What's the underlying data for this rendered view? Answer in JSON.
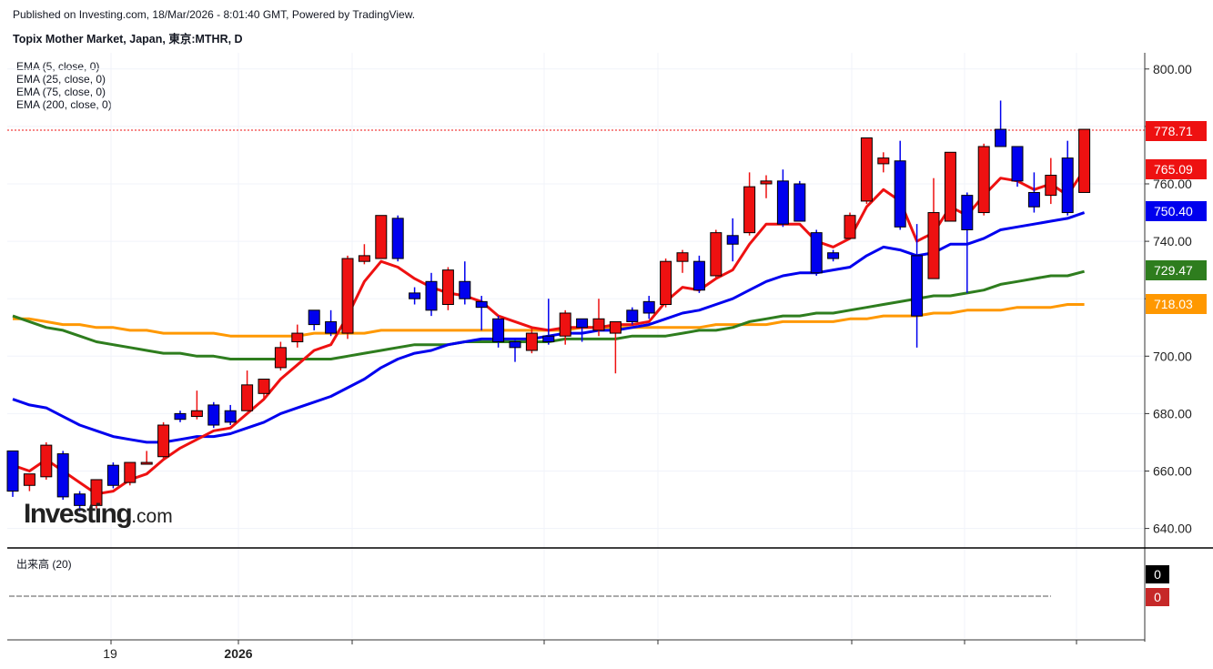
{
  "header": {
    "published": "Published on Investing.com, 18/Mar/2026 - 8:01:40 GMT, Powered by TradingView.",
    "title": "Topix Mother Market, Japan, 東京:MTHR, D"
  },
  "indicators": [
    {
      "label": "EMA (5, close, 0)",
      "color": "#ee1111"
    },
    {
      "label": "EMA (25, close, 0)",
      "color": "#0000ee"
    },
    {
      "label": "EMA (75, close, 0)",
      "color": "#2e7d1e"
    },
    {
      "label": "EMA (200, close, 0)",
      "color": "#ff9800"
    }
  ],
  "volume": {
    "label": "出来高 (20)",
    "values": [
      "0",
      "0"
    ],
    "colors": [
      "#000000",
      "#c62828"
    ]
  },
  "logo": {
    "main": "Investing",
    "suffix": ".com"
  },
  "chart_data": {
    "type": "candlestick",
    "y_ticks": [
      "800.00",
      "780.00",
      "760.00",
      "740.00",
      "720.00",
      "700.00",
      "680.00",
      "660.00",
      "640.00"
    ],
    "y_tick_values": [
      800,
      780,
      760,
      740,
      720,
      700,
      680,
      660,
      640
    ],
    "x_ticks": [
      {
        "label": "19",
        "bold": false,
        "index": 5
      },
      {
        "label": "2026",
        "bold": true,
        "index": 11
      }
    ],
    "price_line": 778.71,
    "last_value_labels": [
      {
        "value": 778.71,
        "text": "778.71",
        "color": "#ee1111"
      },
      {
        "value": 765.09,
        "text": "765.09",
        "color": "#ee1111"
      },
      {
        "value": 750.4,
        "text": "750.40",
        "color": "#0000ee"
      },
      {
        "value": 729.47,
        "text": "729.47",
        "color": "#2e7d1e"
      },
      {
        "value": 718.03,
        "text": "718.03",
        "color": "#ff9800"
      }
    ],
    "up_color": "#ee1111",
    "down_color": "#0000ee",
    "candles": [
      {
        "o": 667,
        "h": 667,
        "l": 651,
        "c": 653
      },
      {
        "o": 655,
        "h": 658,
        "l": 653,
        "c": 659
      },
      {
        "o": 658,
        "h": 670,
        "l": 657,
        "c": 669
      },
      {
        "o": 666,
        "h": 667,
        "l": 650,
        "c": 651
      },
      {
        "o": 652,
        "h": 653,
        "l": 646,
        "c": 648
      },
      {
        "o": 648,
        "h": 656,
        "l": 647,
        "c": 657
      },
      {
        "o": 662,
        "h": 663,
        "l": 654,
        "c": 655
      },
      {
        "o": 656,
        "h": 663,
        "l": 655,
        "c": 663
      },
      {
        "o": 663,
        "h": 667,
        "l": 663,
        "c": 663
      },
      {
        "o": 665,
        "h": 677,
        "l": 664,
        "c": 676
      },
      {
        "o": 680,
        "h": 681,
        "l": 677,
        "c": 678
      },
      {
        "o": 679,
        "h": 688,
        "l": 678,
        "c": 681
      },
      {
        "o": 683,
        "h": 684,
        "l": 675,
        "c": 676
      },
      {
        "o": 681,
        "h": 683,
        "l": 676,
        "c": 677
      },
      {
        "o": 681,
        "h": 695,
        "l": 681,
        "c": 690
      },
      {
        "o": 687,
        "h": 692,
        "l": 685,
        "c": 692
      },
      {
        "o": 696,
        "h": 705,
        "l": 695,
        "c": 703
      },
      {
        "o": 705,
        "h": 711,
        "l": 703,
        "c": 708
      },
      {
        "o": 716,
        "h": 716,
        "l": 709,
        "c": 711
      },
      {
        "o": 712,
        "h": 716,
        "l": 707,
        "c": 708
      },
      {
        "o": 708,
        "h": 735,
        "l": 706,
        "c": 734
      },
      {
        "o": 733,
        "h": 739,
        "l": 732,
        "c": 735
      },
      {
        "o": 734,
        "h": 749,
        "l": 734,
        "c": 749
      },
      {
        "o": 748,
        "h": 749,
        "l": 733,
        "c": 734
      },
      {
        "o": 722,
        "h": 724,
        "l": 718,
        "c": 720
      },
      {
        "o": 726,
        "h": 729,
        "l": 714,
        "c": 716
      },
      {
        "o": 718,
        "h": 731,
        "l": 716,
        "c": 730
      },
      {
        "o": 726,
        "h": 733,
        "l": 718,
        "c": 720
      },
      {
        "o": 719,
        "h": 721,
        "l": 709,
        "c": 717
      },
      {
        "o": 713,
        "h": 714,
        "l": 703,
        "c": 705
      },
      {
        "o": 705,
        "h": 706,
        "l": 698,
        "c": 703
      },
      {
        "o": 702,
        "h": 710,
        "l": 701,
        "c": 708
      },
      {
        "o": 707,
        "h": 720,
        "l": 704,
        "c": 705
      },
      {
        "o": 707,
        "h": 716,
        "l": 704,
        "c": 715
      },
      {
        "o": 713,
        "h": 713,
        "l": 705,
        "c": 710
      },
      {
        "o": 709,
        "h": 720,
        "l": 707,
        "c": 713
      },
      {
        "o": 708,
        "h": 712,
        "l": 694,
        "c": 712
      },
      {
        "o": 716,
        "h": 717,
        "l": 711,
        "c": 712
      },
      {
        "o": 719,
        "h": 721,
        "l": 713,
        "c": 715
      },
      {
        "o": 718,
        "h": 734,
        "l": 717,
        "c": 733
      },
      {
        "o": 733,
        "h": 737,
        "l": 729,
        "c": 736
      },
      {
        "o": 733,
        "h": 735,
        "l": 722,
        "c": 723
      },
      {
        "o": 728,
        "h": 744,
        "l": 727,
        "c": 743
      },
      {
        "o": 742,
        "h": 748,
        "l": 733,
        "c": 739
      },
      {
        "o": 743,
        "h": 764,
        "l": 742,
        "c": 759
      },
      {
        "o": 760,
        "h": 763,
        "l": 755,
        "c": 761
      },
      {
        "o": 761,
        "h": 765,
        "l": 745,
        "c": 746
      },
      {
        "o": 760,
        "h": 761,
        "l": 747,
        "c": 747
      },
      {
        "o": 743,
        "h": 744,
        "l": 728,
        "c": 729
      },
      {
        "o": 736,
        "h": 737,
        "l": 733,
        "c": 734
      },
      {
        "o": 741,
        "h": 750,
        "l": 741,
        "c": 749
      },
      {
        "o": 754,
        "h": 776,
        "l": 753,
        "c": 776
      },
      {
        "o": 767,
        "h": 771,
        "l": 764,
        "c": 769
      },
      {
        "o": 768,
        "h": 775,
        "l": 744,
        "c": 745
      },
      {
        "o": 735,
        "h": 746,
        "l": 703,
        "c": 714
      },
      {
        "o": 727,
        "h": 762,
        "l": 727,
        "c": 750
      },
      {
        "o": 747,
        "h": 771,
        "l": 747,
        "c": 771
      },
      {
        "o": 756,
        "h": 757,
        "l": 722,
        "c": 744
      },
      {
        "o": 750,
        "h": 774,
        "l": 749,
        "c": 773
      },
      {
        "o": 779,
        "h": 789,
        "l": 773,
        "c": 773
      },
      {
        "o": 773,
        "h": 773,
        "l": 759,
        "c": 761
      },
      {
        "o": 757,
        "h": 764,
        "l": 750,
        "c": 752
      },
      {
        "o": 756,
        "h": 769,
        "l": 753,
        "c": 763
      },
      {
        "o": 769,
        "h": 775,
        "l": 749,
        "c": 750
      },
      {
        "o": 757,
        "h": 779,
        "l": 757,
        "c": 779
      }
    ],
    "ema5": [
      662,
      660,
      664,
      660,
      656,
      652,
      653,
      657,
      659,
      664,
      668,
      671,
      674,
      675,
      680,
      685,
      692,
      697,
      702,
      704,
      714,
      726,
      733,
      731,
      727,
      724,
      722,
      721,
      719,
      714,
      712,
      710,
      709,
      710,
      710,
      710,
      711,
      711,
      712,
      719,
      724,
      723,
      727,
      730,
      739,
      746,
      746,
      746,
      740,
      738,
      741,
      752,
      758,
      754,
      740,
      743,
      752,
      749,
      756,
      762,
      761,
      758,
      760,
      756,
      765
    ],
    "ema25": [
      685,
      683,
      682,
      679,
      676,
      674,
      672,
      671,
      670,
      670,
      671,
      672,
      672,
      673,
      675,
      677,
      680,
      682,
      684,
      686,
      689,
      692,
      696,
      699,
      701,
      702,
      704,
      705,
      706,
      706,
      706,
      706,
      707,
      708,
      708,
      709,
      709,
      710,
      711,
      713,
      715,
      716,
      718,
      720,
      723,
      726,
      728,
      729,
      729,
      730,
      731,
      735,
      738,
      737,
      735,
      736,
      739,
      739,
      741,
      744,
      745,
      746,
      747,
      748,
      750
    ],
    "ema75": [
      714,
      712,
      710,
      709,
      707,
      705,
      704,
      703,
      702,
      701,
      701,
      700,
      700,
      699,
      699,
      699,
      699,
      699,
      699,
      699,
      700,
      701,
      702,
      703,
      704,
      704,
      704,
      705,
      705,
      705,
      705,
      705,
      705,
      706,
      706,
      706,
      706,
      707,
      707,
      707,
      708,
      709,
      709,
      710,
      712,
      713,
      714,
      714,
      715,
      715,
      716,
      717,
      718,
      719,
      720,
      721,
      721,
      722,
      723,
      725,
      726,
      727,
      728,
      728,
      729.5
    ],
    "ema200": [
      713,
      713,
      712,
      711,
      711,
      710,
      710,
      709,
      709,
      708,
      708,
      708,
      708,
      707,
      707,
      707,
      707,
      707,
      708,
      708,
      708,
      708,
      709,
      709,
      709,
      709,
      709,
      709,
      709,
      709,
      709,
      709,
      709,
      709,
      710,
      710,
      710,
      710,
      710,
      710,
      710,
      710,
      711,
      711,
      711,
      711,
      712,
      712,
      712,
      712,
      713,
      713,
      714,
      714,
      714,
      715,
      715,
      716,
      716,
      716,
      717,
      717,
      717,
      718,
      718
    ]
  }
}
